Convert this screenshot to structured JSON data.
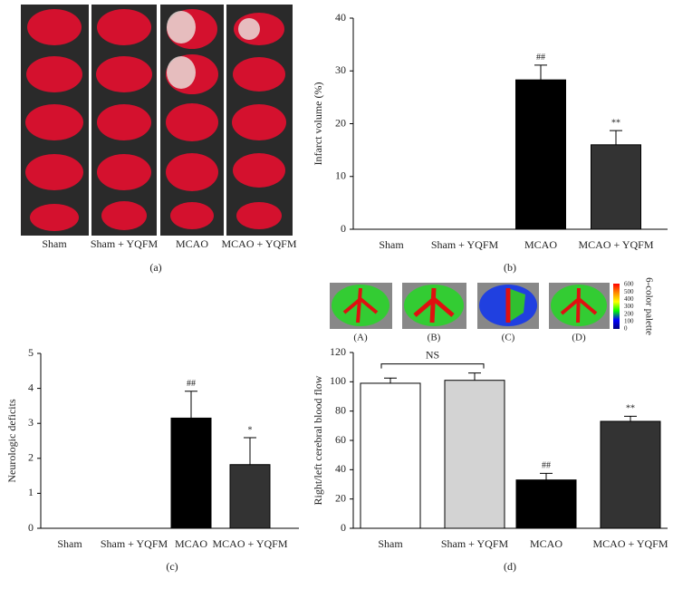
{
  "figure_a": {
    "labels": [
      "Sham",
      "Sham + YQFM",
      "MCAO",
      "MCAO + YQFM"
    ],
    "caption": "(a)"
  },
  "figure_d_inset": {
    "labels": [
      "(A)",
      "(B)",
      "(C)",
      "(D)"
    ],
    "palette_ticks": [
      0,
      100,
      200,
      300,
      400,
      500,
      600
    ],
    "palette_label": "6-color palette"
  },
  "chart_data": [
    {
      "type": "bar",
      "caption": "(b)",
      "y_label": "Infarct volume (%)",
      "categories": [
        "Sham",
        "Sham + YQFM",
        "MCAO",
        "MCAO + YQFM"
      ],
      "values": [
        0,
        0,
        28.3,
        16.0
      ],
      "errors": [
        0,
        0,
        2.8,
        2.7
      ],
      "annotations": [
        null,
        null,
        "##",
        "**"
      ],
      "colors": [
        "#000000",
        "#000000",
        "#000000",
        "#333333"
      ],
      "ylim": [
        0,
        40
      ],
      "yticks": [
        0,
        10,
        20,
        30,
        40
      ]
    },
    {
      "type": "bar",
      "caption": "(c)",
      "y_label": "Neurologic deficits",
      "categories": [
        "Sham",
        "Sham + YQFM",
        "MCAO",
        "MCAO + YQFM"
      ],
      "values": [
        0,
        0,
        3.15,
        1.82
      ],
      "errors": [
        0,
        0,
        0.77,
        0.77
      ],
      "annotations": [
        null,
        null,
        "##",
        "*"
      ],
      "colors": [
        "#000000",
        "#000000",
        "#000000",
        "#333333"
      ],
      "ylim": [
        0,
        5
      ],
      "yticks": [
        0,
        1,
        2,
        3,
        4,
        5
      ]
    },
    {
      "type": "bar",
      "caption": "(d)",
      "y_label": "Right/left cerebral blood flow",
      "categories": [
        "Sham",
        "Sham + YQFM",
        "MCAO",
        "MCAO + YQFM"
      ],
      "values": [
        99,
        101,
        33,
        73
      ],
      "errors": [
        3.5,
        5,
        4.5,
        3.5
      ],
      "annotations": [
        null,
        null,
        "##",
        "**"
      ],
      "bracket_label": "NS",
      "colors": [
        "#ffffff",
        "#d3d3d3",
        "#000000",
        "#333333"
      ],
      "ylim": [
        0,
        120
      ],
      "yticks": [
        0,
        20,
        40,
        60,
        80,
        100,
        120
      ]
    }
  ]
}
